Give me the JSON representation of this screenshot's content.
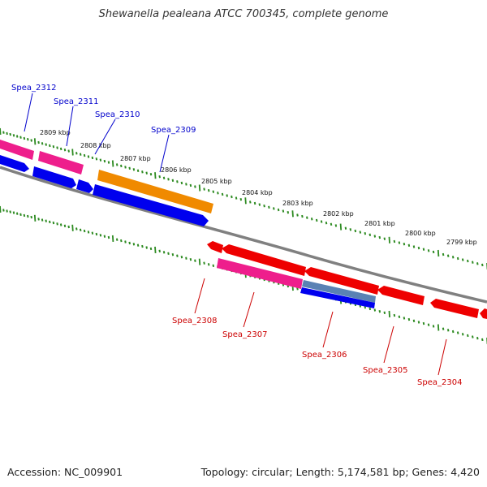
{
  "title": "Shewanella pealeana ATCC 700345, complete genome",
  "footer": {
    "accession": "Accession: NC_009901",
    "summary": "Topology: circular; Length: 5,174,581 bp; Genes: 4,420"
  },
  "colors": {
    "background": "#ffffff",
    "backbone": "#808080",
    "tick_green": "#2e8b22",
    "forward_label": "#0000cc",
    "reverse_label": "#cc0000",
    "cds_red": "#ee0000",
    "cds_blue": "#0000ee",
    "cds_pink": "#ee1e8c",
    "cds_orange": "#f08a00",
    "cds_steelblue": "#5a82b4"
  },
  "ruler_labels": [
    "2809 kbp",
    "2808 kbp",
    "2807 kbp",
    "2806 kbp",
    "2805 kbp",
    "2804 kbp",
    "2803 kbp",
    "2802 kbp",
    "2801 kbp",
    "2800 kbp",
    "2799 kbp"
  ],
  "gene_labels": {
    "forward": [
      "Spea_2312",
      "Spea_2311",
      "Spea_2310",
      "Spea_2309"
    ],
    "reverse": [
      "Spea_2308",
      "Spea_2307",
      "Spea_2306",
      "Spea_2305",
      "Spea_2304"
    ]
  }
}
